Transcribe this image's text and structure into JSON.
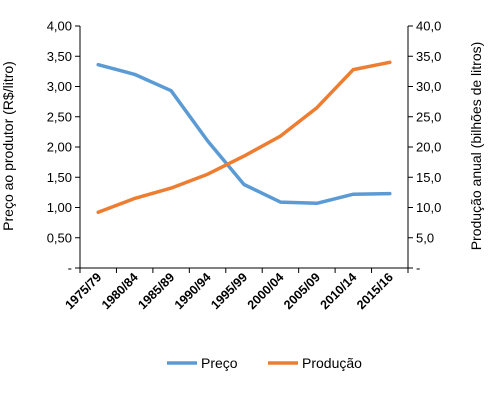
{
  "chart_data": {
    "type": "line",
    "categories": [
      "1975/79",
      "1980/84",
      "1985/89",
      "1990/94",
      "1995/99",
      "2000/04",
      "2005/09",
      "2010/14",
      "2015/16"
    ],
    "series": [
      {
        "name": "Preço",
        "axis": "left",
        "color": "#5b9bd5",
        "values": [
          3.36,
          3.2,
          2.93,
          2.1,
          1.38,
          1.09,
          1.07,
          1.22,
          1.23
        ]
      },
      {
        "name": "Produção",
        "axis": "right",
        "color": "#ed7d31",
        "values": [
          9.2,
          11.5,
          13.2,
          15.5,
          18.5,
          21.8,
          26.5,
          32.8,
          34.0
        ]
      }
    ],
    "ylabel_left": "Preço ao produtor (R$/litro)",
    "ylabel_right": "Produção anual (bilhões de litros)",
    "ylim_left": [
      0,
      4
    ],
    "ylim_right": [
      0,
      40
    ],
    "yticks_left": [
      "-",
      "0,50",
      "1,00",
      "1,50",
      "2,00",
      "2,50",
      "3,00",
      "3,50",
      "4,00"
    ],
    "yticks_right": [
      "-",
      "5,0",
      "10,0",
      "15,0",
      "20,0",
      "25,0",
      "30,0",
      "35,0",
      "40,0"
    ],
    "grid": false,
    "legend_position": "bottom"
  }
}
